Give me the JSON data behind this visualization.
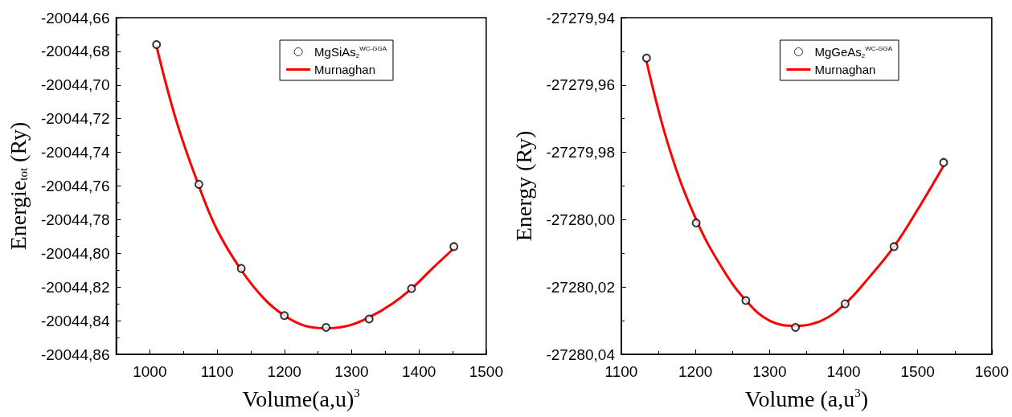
{
  "chart_data": [
    {
      "type": "scatter",
      "xlabel": "Volume(a,u)$^{3}$",
      "ylabel": "Energie$_{tot}$ (Ry)",
      "xlim": [
        950,
        1500
      ],
      "xticks": [
        1000,
        1100,
        1200,
        1300,
        1400,
        1500
      ],
      "ylim": [
        -20044.86,
        -20044.66
      ],
      "yticks": [
        {
          "value": -20044.86,
          "label": "-20044,86"
        },
        {
          "value": -20044.84,
          "label": "-20044,84"
        },
        {
          "value": -20044.82,
          "label": "-20044,82"
        },
        {
          "value": -20044.8,
          "label": "-20044,80"
        },
        {
          "value": -20044.78,
          "label": "-20044,78"
        },
        {
          "value": -20044.76,
          "label": "-20044,76"
        },
        {
          "value": -20044.74,
          "label": "-20044,74"
        },
        {
          "value": -20044.72,
          "label": "-20044,72"
        },
        {
          "value": -20044.7,
          "label": "-20044,70"
        },
        {
          "value": -20044.68,
          "label": "-20044,68"
        },
        {
          "value": -20044.66,
          "label": "-20044,66"
        }
      ],
      "grid": false,
      "legend": "top right",
      "series": [
        {
          "name": "MgSiAs$_{2}$$^{WC-GGA}$",
          "marker": "circle",
          "color": "#000000",
          "x": [
            1010,
            1073,
            1136,
            1200,
            1262,
            1326,
            1389,
            1452
          ],
          "values": [
            -20044.676,
            -20044.759,
            -20044.809,
            -20044.837,
            -20044.844,
            -20044.839,
            -20044.821,
            -20044.796
          ]
        },
        {
          "name": "Murnaghan",
          "type": "line",
          "marker": "none",
          "line_style": "solid",
          "color": "#ff0000",
          "x": [
            1010,
            1040,
            1073,
            1100,
            1136,
            1170,
            1200,
            1230,
            1262,
            1295,
            1326,
            1360,
            1389,
            1420,
            1452
          ],
          "values": [
            -20044.677,
            -20044.722,
            -20044.76,
            -20044.786,
            -20044.81,
            -20044.827,
            -20044.837,
            -20044.843,
            -20044.8445,
            -20044.843,
            -20044.838,
            -20044.83,
            -20044.821,
            -20044.809,
            -20044.797
          ]
        }
      ]
    },
    {
      "type": "scatter",
      "xlabel": "Volume (a,u$^{3}$)",
      "ylabel": "Energy (Ry)",
      "xlim": [
        1100,
        1600
      ],
      "xticks": [
        1100,
        1200,
        1300,
        1400,
        1500,
        1600
      ],
      "ylim": [
        -27280.04,
        -27279.94
      ],
      "yticks": [
        {
          "value": -27280.04,
          "label": "-27280,04"
        },
        {
          "value": -27280.02,
          "label": "-27280,02"
        },
        {
          "value": -27280.0,
          "label": "-27280,00"
        },
        {
          "value": -27279.98,
          "label": "-27279,98"
        },
        {
          "value": -27279.96,
          "label": "-27279,96"
        },
        {
          "value": -27279.94,
          "label": "-27279,94"
        }
      ],
      "grid": false,
      "legend": "top right",
      "series": [
        {
          "name": "MgGeAs$_{2}$$^{WC-GGA}$",
          "marker": "circle",
          "color": "#000000",
          "x": [
            1134,
            1201,
            1268,
            1335,
            1402,
            1468,
            1535
          ],
          "values": [
            -27279.952,
            -27280.001,
            -27280.024,
            -27280.032,
            -27280.025,
            -27280.008,
            -27279.983
          ]
        },
        {
          "name": "Murnaghan",
          "type": "line",
          "marker": "none",
          "line_style": "solid",
          "color": "#ff0000",
          "x": [
            1134,
            1165,
            1201,
            1235,
            1268,
            1300,
            1335,
            1370,
            1402,
            1435,
            1468,
            1500,
            1535
          ],
          "values": [
            -27279.953,
            -27279.979,
            -27280.0,
            -27280.014,
            -27280.024,
            -27280.03,
            -27280.0315,
            -27280.03,
            -27280.025,
            -27280.017,
            -27280.008,
            -27279.997,
            -27279.984
          ]
        }
      ]
    }
  ]
}
